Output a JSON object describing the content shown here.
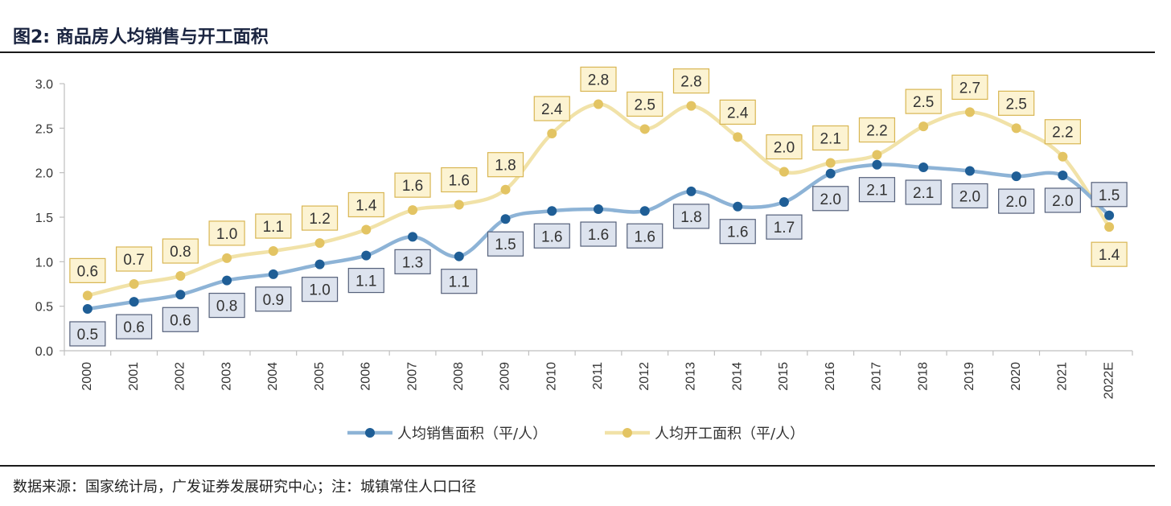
{
  "figure": {
    "title": "图2:  商品房人均销售与开工面积",
    "source": "数据来源：国家统计局，广发证券发展研究中心；注：城镇常住人口口径"
  },
  "colors": {
    "sales_line": "#8db3d6",
    "sales_marker": "#1f5e96",
    "sales_label_bg": "#dde3ee",
    "sales_label_border": "#55607a",
    "start_line": "#f1e2a8",
    "start_marker": "#e3c463",
    "start_label_bg": "#fcf3d2",
    "start_label_border": "#d8b653"
  },
  "chart_data": {
    "type": "line",
    "categories": [
      "2000",
      "2001",
      "2002",
      "2003",
      "2004",
      "2005",
      "2006",
      "2007",
      "2008",
      "2009",
      "2010",
      "2011",
      "2012",
      "2013",
      "2014",
      "2015",
      "2016",
      "2017",
      "2018",
      "2019",
      "2020",
      "2021",
      "2022E"
    ],
    "ylim": [
      0,
      3.0
    ],
    "yticks": [
      "0.0",
      "0.5",
      "1.0",
      "1.5",
      "2.0",
      "2.5",
      "3.0"
    ],
    "grid": false,
    "legend_position": "bottom",
    "series": [
      {
        "name": "人均销售面积（平/人）",
        "values": [
          0.47,
          0.55,
          0.63,
          0.79,
          0.86,
          0.97,
          1.07,
          1.28,
          1.06,
          1.48,
          1.57,
          1.59,
          1.57,
          1.79,
          1.62,
          1.67,
          1.99,
          2.09,
          2.06,
          2.02,
          1.96,
          1.97,
          1.52
        ],
        "labels": [
          "0.5",
          "0.6",
          "0.6",
          "0.8",
          "0.9",
          "1.0",
          "1.1",
          "1.3",
          "1.1",
          "1.5",
          "1.6",
          "1.6",
          "1.6",
          "1.8",
          "1.6",
          "1.7",
          "2.0",
          "2.1",
          "2.1",
          "2.0",
          "2.0",
          "2.0",
          "1.5"
        ]
      },
      {
        "name": "人均开工面积（平/人）",
        "values": [
          0.62,
          0.75,
          0.84,
          1.04,
          1.12,
          1.21,
          1.36,
          1.58,
          1.64,
          1.81,
          2.44,
          2.77,
          2.49,
          2.75,
          2.4,
          2.01,
          2.11,
          2.2,
          2.52,
          2.68,
          2.5,
          2.18,
          1.39
        ],
        "labels": [
          "0.6",
          "0.7",
          "0.8",
          "1.0",
          "1.1",
          "1.2",
          "1.4",
          "1.6",
          "1.6",
          "1.8",
          "2.4",
          "2.8",
          "2.5",
          "2.8",
          "2.4",
          "2.0",
          "2.1",
          "2.2",
          "2.5",
          "2.7",
          "2.5",
          "2.2",
          "1.4"
        ]
      }
    ]
  }
}
